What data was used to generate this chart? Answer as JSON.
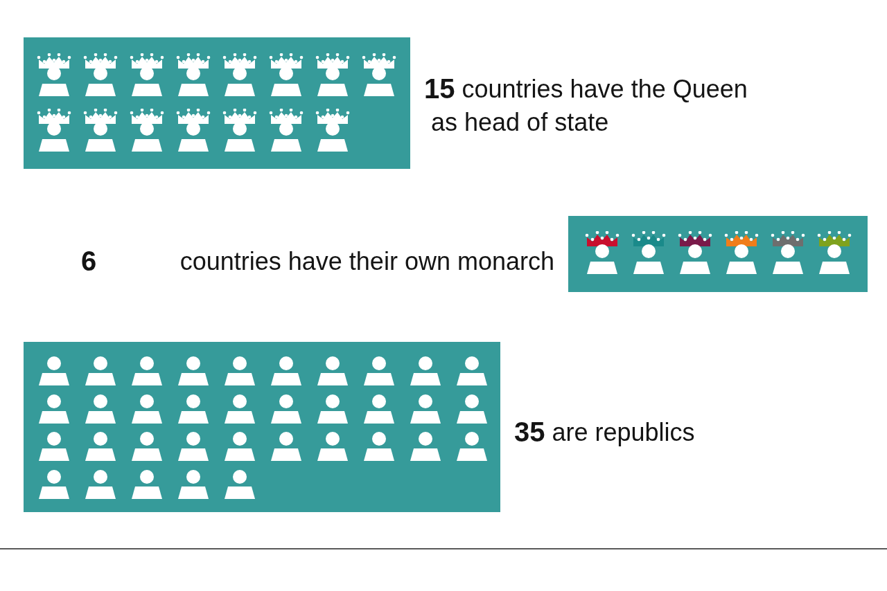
{
  "chart_data": {
    "type": "other",
    "categories": [
      "countries have the Queen as head of state",
      "countries have their own monarch",
      "are republics"
    ],
    "values": [
      15,
      6,
      35
    ],
    "color": "#369b9a",
    "data_labels": true
  }
}
